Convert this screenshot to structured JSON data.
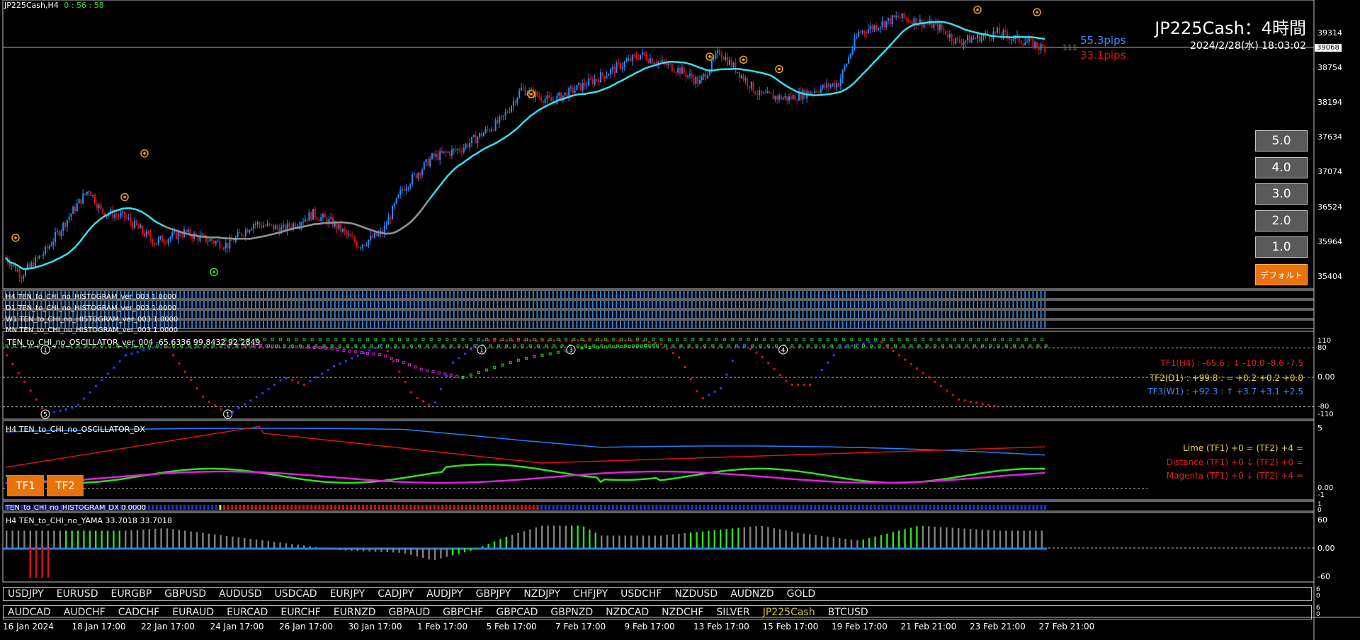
{
  "header": {
    "symbol_tf": "JP225Cash,H4",
    "countdown": "0 : 56 : 58"
  },
  "title_block": {
    "title": "JP225Cash：4時間",
    "datetime": "2024/2/28(水) 18:03:02",
    "pips_up": "55.3pips",
    "pips_down": "33.1pips",
    "spread": "111",
    "current_price": "39068"
  },
  "price_axis": [
    "39314",
    "38754",
    "38194",
    "37634",
    "37074",
    "36524",
    "35964",
    "35404"
  ],
  "side_buttons": [
    "5.0",
    "4.0",
    "3.0",
    "2.0",
    "1.0"
  ],
  "default_button": "デフォルト",
  "histogram_labels": [
    "H4 TEN_to_CHI_no_HISTOGRAM_ver_003 1.0000",
    "D1 TEN_to_CHI_no_HISTOGRAM_ver_003 1.0000",
    "W1 TEN_to_CHI_no_HISTOGRAM_ver_003 1.0000",
    "MN TEN_to_CHI_no_HISTOGRAM_ver_003 1.0000"
  ],
  "oscillator": {
    "label": "TEN_to_CHI_no_OSCILLATOR_ver_004 -65.6336 99.8432 92.2849",
    "axis": [
      "110",
      "80",
      "0.00",
      "-80",
      "-110"
    ],
    "tf1": "TF1(H4) : -65.6 : ↓ -10.0 -8.6 -7.5",
    "tf2": "TF2(D1) : +99.8 : = +0.2 +0.2 +0.0",
    "tf3": "TF3(W1) : +92.3 : ↑ +3.7 +3.1 +2.5",
    "markers": [
      "5",
      "1",
      "1",
      "1",
      "3",
      "4"
    ],
    "colors": {
      "tf1": "#e02020",
      "tf2": "#e8d040",
      "tf3": "#3a8cff"
    }
  },
  "dx": {
    "label": "H4 TEN_to_CHI_no_OSCILLATOR_DX",
    "axis": [
      "5",
      "0.00",
      "-1"
    ],
    "lime": "Lime (TF1) +0 = (TF2) +4 =",
    "distance": "Distance (TF1) +0 ↓ (TF2) +0 =",
    "magenta": "Magenta (TF1) +0 ↓ (TF2) +4 =",
    "tf1_button": "TF1",
    "tf2_button": "TF2"
  },
  "histogram_dx": {
    "label": "TEN_to_CHI_no_HISTOGRAM_DX 0.0000",
    "axis": [
      "1",
      "0"
    ]
  },
  "yama": {
    "label": "H4  TEN_to_CHI_no_YAMA  33.7018 33.7018",
    "axis": [
      "60",
      "0.00",
      "-60"
    ]
  },
  "pairs_row1": [
    "USDJPY",
    "EURUSD",
    "EURGBP",
    "GBPUSD",
    "AUDUSD",
    "USDCAD",
    "EURJPY",
    "CADJPY",
    "AUDJPY",
    "GBPJPY",
    "NZDJPY",
    "CHFJPY",
    "USDCHF",
    "NZDUSD",
    "AUDNZD",
    "GOLD"
  ],
  "pairs_row2": [
    "AUDCAD",
    "AUDCHF",
    "CADCHF",
    "EURAUD",
    "EURCAD",
    "EURCHF",
    "EURNZD",
    "GBPAUD",
    "GBPCHF",
    "GBPCAD",
    "GBPNZD",
    "NZDCAD",
    "NZDCHF",
    "SILVER",
    "JP225Cash",
    "BTCUSD"
  ],
  "active_pair": "JP225Cash",
  "time_axis": [
    "16 Jan 2024",
    "18 Jan 17:00",
    "22 Jan 17:00",
    "24 Jan 17:00",
    "26 Jan 17:00",
    "30 Jan 17:00",
    "1 Feb 17:00",
    "5 Feb 17:00",
    "7 Feb 17:00",
    "9 Feb 17:00",
    "13 Feb 17:00",
    "15 Feb 17:00",
    "19 Feb 17:00",
    "21 Feb 21:00",
    "23 Feb 21:00",
    "27 Feb 21:00"
  ],
  "colors": {
    "bull": "#1e90ff",
    "bear": "#e01010",
    "ma": "#33e0f0",
    "lime": "#30e020",
    "magenta": "#e020e0",
    "blue_line": "#2080ff",
    "red_line": "#e01010",
    "default_button": "#e8730c"
  }
}
